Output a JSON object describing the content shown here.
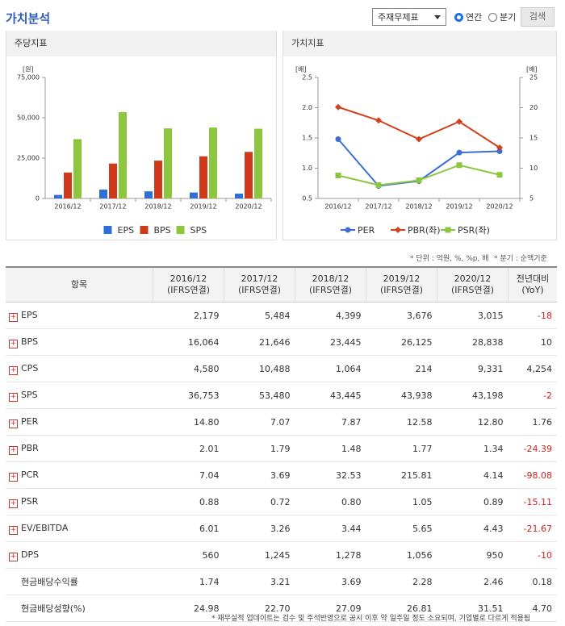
{
  "header": {
    "title": "가치분석",
    "select": "주재무제표",
    "radio_annual": "연간",
    "radio_quarter": "분기",
    "button": "검색"
  },
  "chart_data": [
    {
      "type": "bar",
      "title": "주당지표",
      "y_label": "[원]",
      "categories": [
        "2016/12",
        "2017/12",
        "2018/12",
        "2019/12",
        "2020/12"
      ],
      "series": [
        {
          "name": "EPS",
          "color": "#2f6fd6",
          "values": [
            2179,
            5484,
            4399,
            3676,
            3015
          ]
        },
        {
          "name": "BPS",
          "color": "#cf3a1b",
          "values": [
            16064,
            21646,
            23445,
            26125,
            28838
          ]
        },
        {
          "name": "SPS",
          "color": "#8cc63e",
          "values": [
            36753,
            53480,
            43445,
            43938,
            43198
          ]
        }
      ],
      "ylim": [
        0,
        75000
      ],
      "yticks": [
        0,
        {
          "value": 25000,
          "label": "25,000"
        },
        {
          "value": 50000,
          "label": "50,000"
        },
        {
          "value": 75000,
          "label": "75,000"
        }
      ],
      "grid": false
    },
    {
      "type": "line",
      "title": "가치지표",
      "y_label": "[배]",
      "y2_label": "[배]",
      "categories": [
        "2016/12",
        "2017/12",
        "2018/12",
        "2019/12",
        "2020/12"
      ],
      "series": [
        {
          "name": "PER",
          "color": "#3a6fd8",
          "marker": "circle",
          "axis": "y2",
          "values": [
            14.8,
            7.07,
            7.87,
            12.58,
            12.8
          ]
        },
        {
          "name": "PBR(좌)",
          "color": "#d2401c",
          "marker": "diamond",
          "values": [
            2.01,
            1.79,
            1.48,
            1.77,
            1.34
          ]
        },
        {
          "name": "PSR(좌)",
          "color": "#8cc63e",
          "marker": "square",
          "values": [
            0.88,
            0.72,
            0.8,
            1.05,
            0.89
          ]
        }
      ],
      "ylim": [
        0.5,
        2.5
      ],
      "yticks": [
        0.5,
        {
          "value": 1,
          "label": "1.0"
        },
        1.5,
        {
          "value": 2,
          "label": "2.0"
        },
        2.5
      ],
      "y2lim": [
        5,
        25
      ],
      "y2ticks": [
        5,
        10,
        15,
        20,
        25
      ],
      "grid": false
    }
  ],
  "units_note": "* 단위 : 억원, %, %p, 배",
  "quarter_note": "* 분기 : 순액기준",
  "table": {
    "item_header": "항목",
    "periods": [
      {
        "period": "2016/12",
        "basis": "(IFRS연결)"
      },
      {
        "period": "2017/12",
        "basis": "(IFRS연결)"
      },
      {
        "period": "2018/12",
        "basis": "(IFRS연결)"
      },
      {
        "period": "2019/12",
        "basis": "(IFRS연결)"
      },
      {
        "period": "2020/12",
        "basis": "(IFRS연결)"
      }
    ],
    "yoy_header": {
      "label": "전년대비",
      "sub": "(YoY)"
    },
    "rows": [
      [
        "EPS",
        "2,179",
        "5,484",
        "4,399",
        "3,676",
        "3,015",
        "-18"
      ],
      [
        "BPS",
        "16,064",
        "21,646",
        "23,445",
        "26,125",
        "28,838",
        "10"
      ],
      [
        "CPS",
        "4,580",
        "10,488",
        "1,064",
        "214",
        "9,331",
        "4,254"
      ],
      [
        "SPS",
        "36,753",
        "53,480",
        "43,445",
        "43,938",
        "43,198",
        "-2"
      ],
      [
        "PER",
        "14.80",
        "7.07",
        "7.87",
        "12.58",
        "12.80",
        "1.76"
      ],
      [
        "PBR",
        "2.01",
        "1.79",
        "1.48",
        "1.77",
        "1.34",
        "-24.39"
      ],
      [
        "PCR",
        "7.04",
        "3.69",
        "32.53",
        "215.81",
        "4.14",
        "-98.08"
      ],
      [
        "PSR",
        "0.88",
        "0.72",
        "0.80",
        "1.05",
        "0.89",
        "-15.11"
      ],
      [
        "EV/EBITDA",
        "6.01",
        "3.26",
        "3.44",
        "5.65",
        "4.43",
        "-21.67"
      ],
      [
        "DPS",
        "560",
        "1,245",
        "1,278",
        "1,056",
        "950",
        "-10"
      ],
      [
        "현금배당수익률",
        "1.74",
        "3.21",
        "3.69",
        "2.28",
        "2.46",
        "0.18"
      ],
      [
        "현금배당성향(%)",
        "24.98",
        "22.70",
        "27.09",
        "26.81",
        "31.51",
        "4.70"
      ]
    ]
  },
  "footnote": "* 재무실적 업데이트는 검수 및 주석반영으로 공시 이후 약 일주일 정도 소요되며, 기업별로 다르게 적용됩"
}
